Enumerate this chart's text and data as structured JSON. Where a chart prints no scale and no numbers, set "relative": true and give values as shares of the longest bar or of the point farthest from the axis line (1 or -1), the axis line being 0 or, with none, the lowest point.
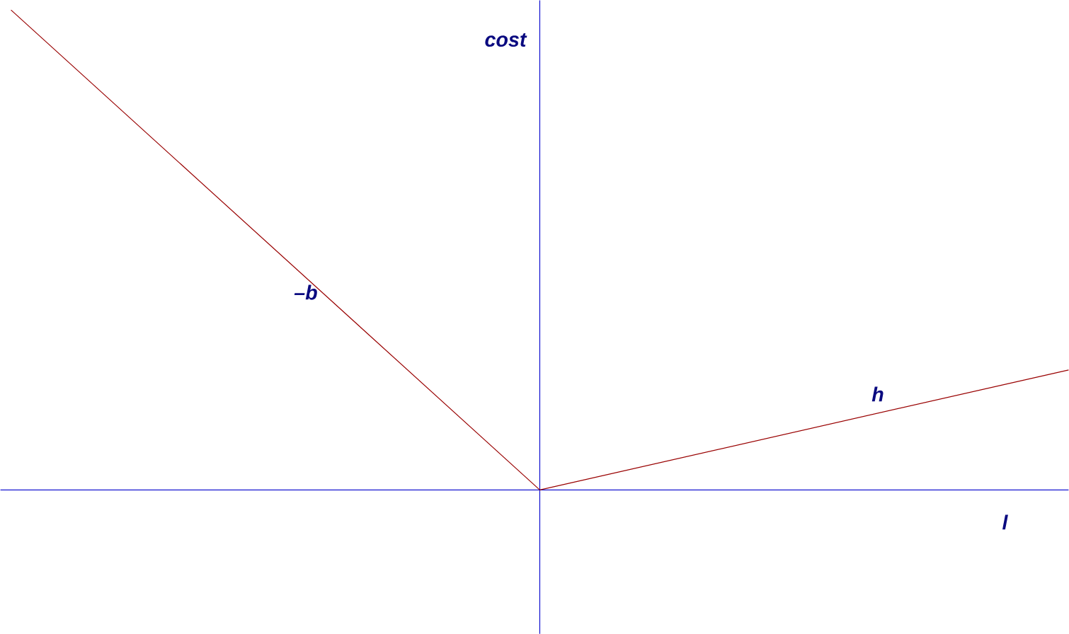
{
  "chart_data": {
    "type": "line",
    "relative": true,
    "xlabel": "l",
    "ylabel": "cost",
    "categories": [
      null,
      null,
      null
    ],
    "marker": "none",
    "line_style": "solid",
    "series": [
      {
        "color": "#990000",
        "values": [
          1,
          0,
          0.25
        ]
      }
    ],
    "annotations": [
      "–b",
      "h"
    ]
  }
}
